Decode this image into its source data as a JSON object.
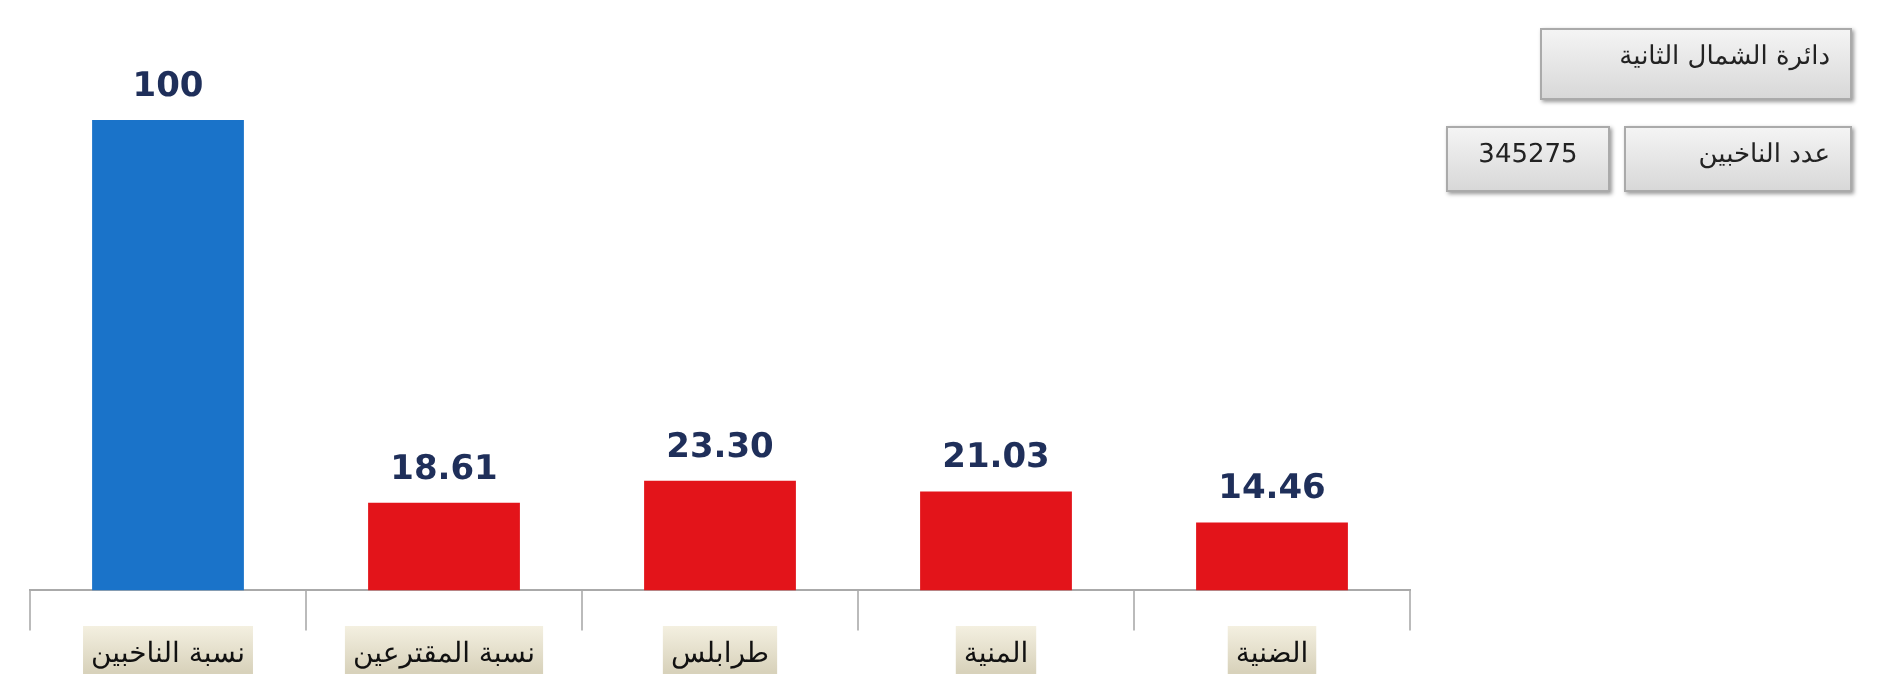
{
  "chart_data": {
    "type": "bar",
    "title": "دائرة الشمال الثانية",
    "categories": [
      "نسبة الناخبين",
      "نسبة المقترعين",
      "طرابلس",
      "المنية",
      "الضنية"
    ],
    "values": [
      100,
      18.61,
      23.3,
      21.03,
      14.46
    ],
    "colors": [
      "#1a73c9",
      "#e3141a",
      "#e3141a",
      "#e3141a",
      "#e3141a"
    ],
    "value_labels": [
      "100",
      "18.61",
      "23.30",
      "21.03",
      "14.46"
    ],
    "annotations": [
      "عدد الناخبين",
      "345275"
    ]
  }
}
